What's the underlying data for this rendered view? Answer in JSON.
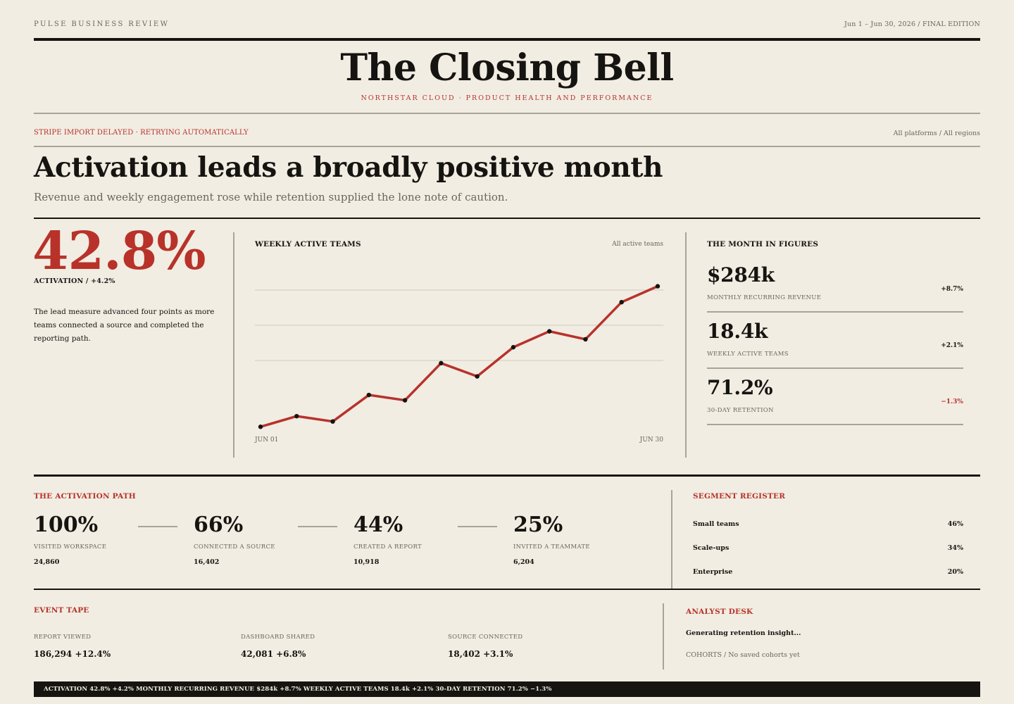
{
  "masthead": {
    "publication": "PULSE BUSINESS REVIEW",
    "edition": "Jun 1 – Jun 30, 2026 / FINAL EDITION",
    "title": "The Closing Bell",
    "subtitle": "NORTHSTAR CLOUD · PRODUCT HEALTH AND PERFORMANCE"
  },
  "status_bar": {
    "alert": "STRIPE IMPORT DELAYED · RETRYING AUTOMATICALLY",
    "scope": "All platforms / All regions"
  },
  "lead": {
    "headline": "Activation leads a broadly positive month",
    "dek": "Revenue and weekly engagement rose while retention supplied the lone note of caution."
  },
  "hero": {
    "value": "42.8%",
    "label": "ACTIVATION / +4.2%",
    "body": "The lead measure advanced four points as more teams connected a source and completed the reporting path."
  },
  "chart_panel": {
    "title": "WEEKLY ACTIVE TEAMS",
    "filter": "All active teams",
    "x_start_label": "JUN 01",
    "x_end_label": "JUN 30"
  },
  "chart_data": {
    "type": "line",
    "title": "WEEKLY ACTIVE TEAMS",
    "x_tick_labels": [
      "JUN 01",
      "JUN 30"
    ],
    "series": [
      {
        "values": [
          0.5,
          2.5,
          1.5,
          6.5,
          5.5,
          12.5,
          10.0,
          15.5,
          18.5,
          17.0,
          24.0,
          27.0
        ]
      }
    ],
    "ylim": [
      0,
      30
    ],
    "grid": true,
    "color": "#b8322a"
  },
  "figures": {
    "title": "THE MONTH IN FIGURES",
    "items": [
      {
        "value": "$284k",
        "label": "MONTHLY RECURRING REVENUE",
        "delta": "+8.7%",
        "negative": false
      },
      {
        "value": "18.4k",
        "label": "WEEKLY ACTIVE TEAMS",
        "delta": "+2.1%",
        "negative": false
      },
      {
        "value": "71.2%",
        "label": "30-DAY RETENTION",
        "delta": "−1.3%",
        "negative": true
      }
    ]
  },
  "activation_path": {
    "title": "THE ACTIVATION PATH",
    "steps": [
      {
        "value": "100%",
        "label": "VISITED WORKSPACE",
        "count": "24,860"
      },
      {
        "value": "66%",
        "label": "CONNECTED A SOURCE",
        "count": "16,402"
      },
      {
        "value": "44%",
        "label": "CREATED A REPORT",
        "count": "10,918"
      },
      {
        "value": "25%",
        "label": "INVITED A TEAMMATE",
        "count": "6,204"
      }
    ]
  },
  "segments": {
    "title": "SEGMENT REGISTER",
    "rows": [
      {
        "name": "Small teams",
        "value": "46%"
      },
      {
        "name": "Scale-ups",
        "value": "34%"
      },
      {
        "name": "Enterprise",
        "value": "20%"
      }
    ]
  },
  "event_tape": {
    "title": "EVENT TAPE",
    "events": [
      {
        "label": "REPORT VIEWED",
        "value": "186,294 +12.4%"
      },
      {
        "label": "DASHBOARD SHARED",
        "value": "42,081 +6.8%"
      },
      {
        "label": "SOURCE CONNECTED",
        "value": "18,402 +3.1%"
      }
    ]
  },
  "analyst_desk": {
    "title": "ANALYST DESK",
    "status": "Generating retention insight...",
    "cohorts": "COHORTS / No saved cohorts yet"
  },
  "ticker": "ACTIVATION 42.8% +4.2% MONTHLY RECURRING REVENUE $284k +8.7% WEEKLY ACTIVE TEAMS 18.4k +2.1% 30-DAY RETENTION 71.2% −1.3%",
  "colors": {
    "accent": "#b8322a",
    "ink": "#161410",
    "paper": "#f1ede3",
    "rule": "#a8a49a"
  }
}
